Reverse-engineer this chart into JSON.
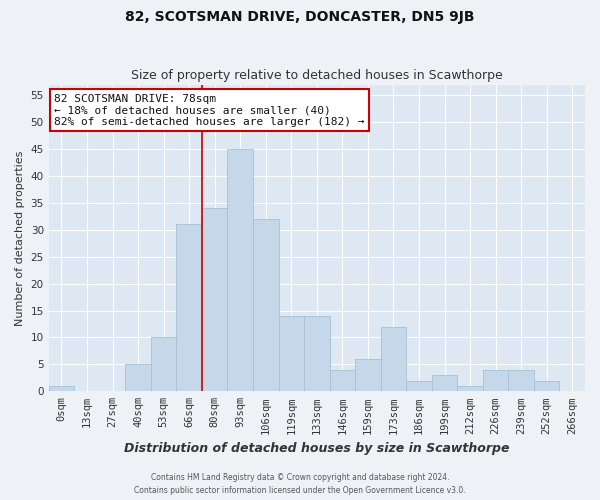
{
  "title": "82, SCOTSMAN DRIVE, DONCASTER, DN5 9JB",
  "subtitle": "Size of property relative to detached houses in Scawthorpe",
  "xlabel": "Distribution of detached houses by size in Scawthorpe",
  "ylabel": "Number of detached properties",
  "bin_labels": [
    "0sqm",
    "13sqm",
    "27sqm",
    "40sqm",
    "53sqm",
    "66sqm",
    "80sqm",
    "93sqm",
    "106sqm",
    "119sqm",
    "133sqm",
    "146sqm",
    "159sqm",
    "173sqm",
    "186sqm",
    "199sqm",
    "212sqm",
    "226sqm",
    "239sqm",
    "252sqm",
    "266sqm"
  ],
  "bar_values": [
    1,
    0,
    0,
    5,
    10,
    31,
    34,
    45,
    32,
    14,
    14,
    4,
    6,
    12,
    2,
    3,
    1,
    4,
    4,
    2,
    0
  ],
  "bar_color": "#c5d8ea",
  "bar_edge_color": "#a8bfd4",
  "vline_x_index": 6,
  "vline_color": "#cc0000",
  "ylim": [
    0,
    57
  ],
  "yticks": [
    0,
    5,
    10,
    15,
    20,
    25,
    30,
    35,
    40,
    45,
    50,
    55
  ],
  "annotation_text": "82 SCOTSMAN DRIVE: 78sqm\n← 18% of detached houses are smaller (40)\n82% of semi-detached houses are larger (182) →",
  "annotation_box_facecolor": "white",
  "annotation_box_edgecolor": "#cc0000",
  "footer_line1": "Contains HM Land Registry data © Crown copyright and database right 2024.",
  "footer_line2": "Contains public sector information licensed under the Open Government Licence v3.0.",
  "fig_facecolor": "#eef2f7",
  "plot_facecolor": "#dde8f3",
  "grid_color": "white",
  "title_fontsize": 10,
  "subtitle_fontsize": 9,
  "ylabel_fontsize": 8,
  "xlabel_fontsize": 9,
  "tick_fontsize": 7.5,
  "ann_fontsize": 8
}
